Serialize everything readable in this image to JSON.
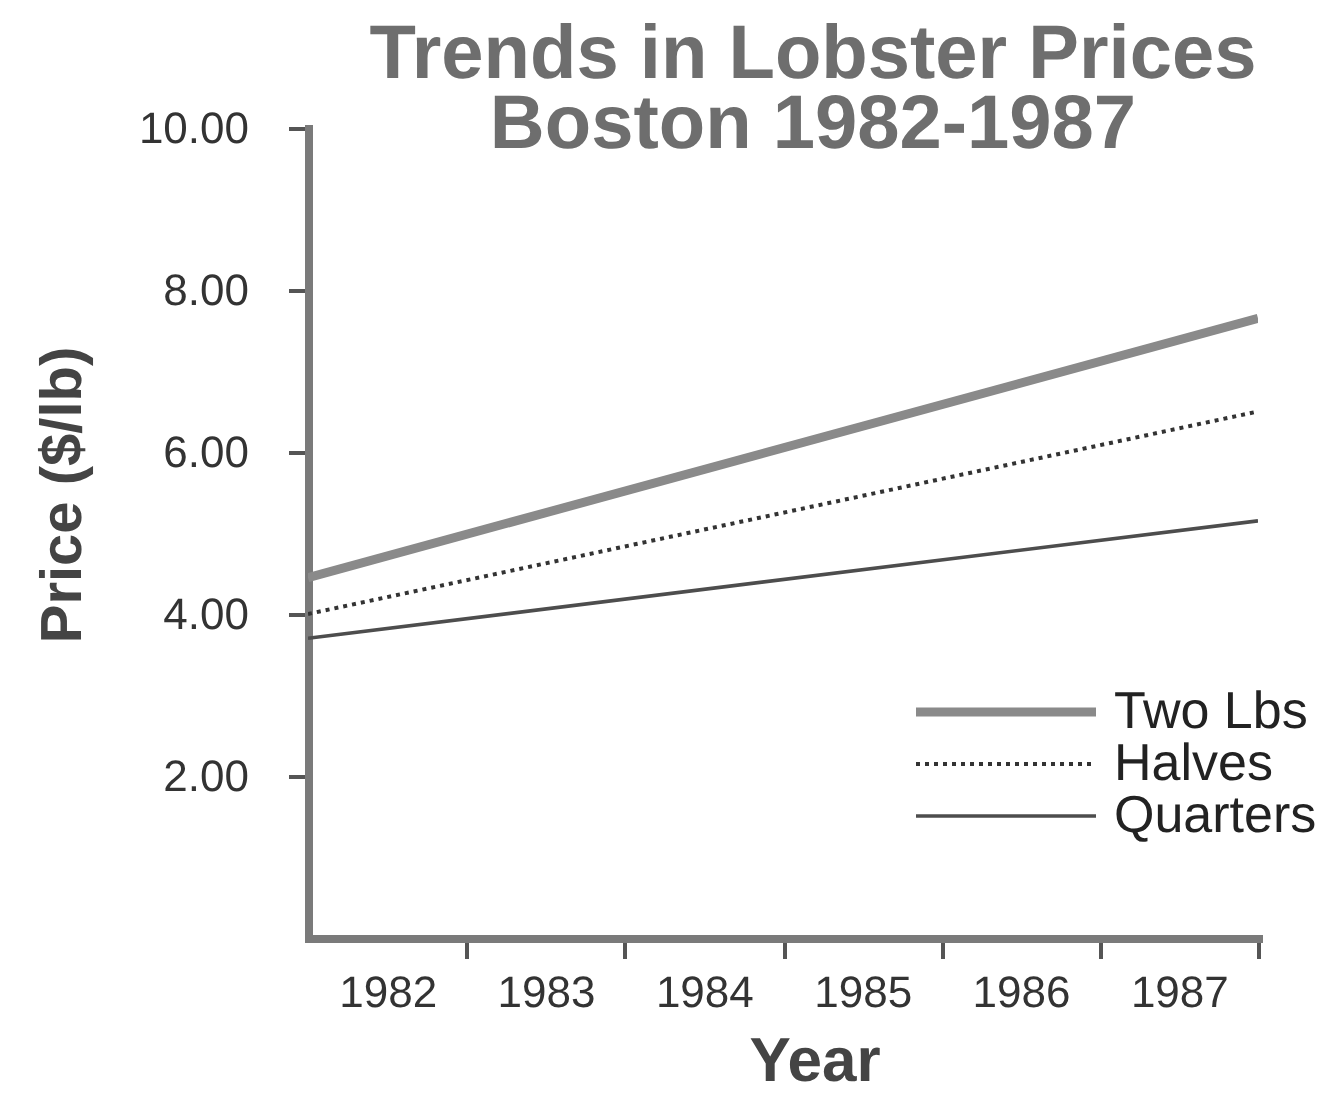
{
  "chart_data": {
    "type": "line",
    "title": "Trends in Lobster Prices\nBoston 1982-1987",
    "xlabel": "Year",
    "ylabel": "Price ($/lb)",
    "x": [
      1981.5,
      1987.5
    ],
    "xlim": [
      1981.5,
      1987.5
    ],
    "xticks": [
      1982,
      {
        "value": 1982.5,
        "label": null
      },
      1983,
      {
        "value": 1983.5,
        "label": null
      },
      1984,
      {
        "value": 1984.5,
        "label": null
      },
      1985,
      {
        "value": 1985.5,
        "label": null
      },
      1986,
      {
        "value": 1986.5,
        "label": null
      },
      1987,
      {
        "value": 1987.5,
        "label": null
      }
    ],
    "ylim": [
      0,
      10
    ],
    "yticks": [
      {
        "value": 2,
        "label": "2.00"
      },
      {
        "value": 4,
        "label": "4.00"
      },
      {
        "value": 6,
        "label": "6.00"
      },
      {
        "value": 8,
        "label": "8.00"
      },
      {
        "value": 10,
        "label": "10.00"
      }
    ],
    "legend": "bottom right",
    "line_style": "solid",
    "series": [
      {
        "name": "Two Lbs",
        "color": "#8a8a8a",
        "values": [
          4.45,
          7.65
        ]
      },
      {
        "name": "Halves",
        "color": "#333333",
        "line_style": "dotted",
        "values": [
          4.0,
          6.5
        ]
      },
      {
        "name": "Quarters",
        "color": "#4d4d4d",
        "values": [
          3.7,
          5.15
        ]
      }
    ]
  }
}
